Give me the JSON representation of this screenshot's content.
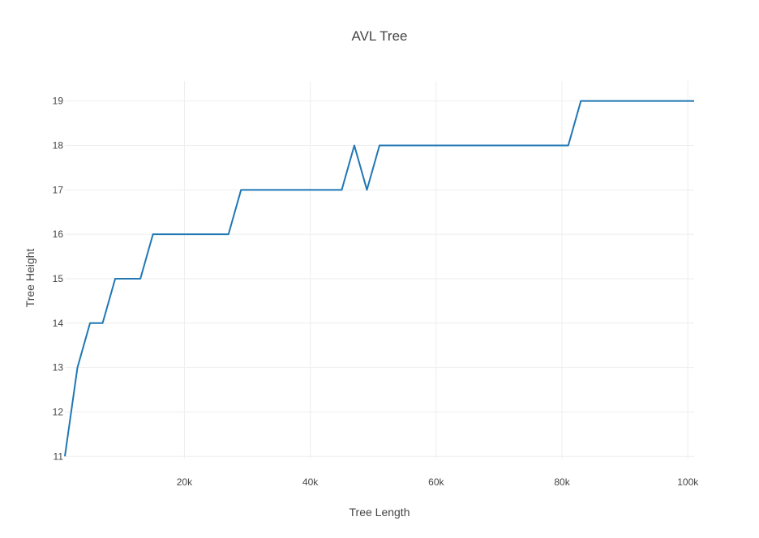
{
  "chart_data": {
    "type": "line",
    "title": "AVL Tree",
    "xlabel": "Tree Length",
    "ylabel": "Tree Height",
    "xlim": [
      1000,
      101000
    ],
    "ylim": [
      10.95,
      19.45
    ],
    "grid": true,
    "xticks": [
      20000,
      40000,
      60000,
      80000,
      100000
    ],
    "xtick_labels": [
      "20k",
      "40k",
      "60k",
      "80k",
      "100k"
    ],
    "yticks": [
      11,
      12,
      13,
      14,
      15,
      16,
      17,
      18,
      19
    ],
    "ytick_labels": [
      "11",
      "12",
      "13",
      "14",
      "15",
      "16",
      "17",
      "18",
      "19"
    ],
    "series": [
      {
        "color": "#1f77b4",
        "x": [
          1000,
          3000,
          5000,
          7000,
          9000,
          11000,
          13000,
          15000,
          17000,
          19000,
          21000,
          23000,
          25000,
          27000,
          29000,
          31000,
          33000,
          35000,
          37000,
          39000,
          41000,
          43000,
          45000,
          47000,
          49000,
          51000,
          53000,
          55000,
          57000,
          59000,
          61000,
          63000,
          65000,
          67000,
          69000,
          71000,
          73000,
          75000,
          77000,
          79000,
          81000,
          83000,
          85000,
          87000,
          89000,
          91000,
          93000,
          95000,
          97000,
          99000,
          101000
        ],
        "y": [
          11,
          13,
          14,
          14,
          15,
          15,
          15,
          16,
          16,
          16,
          16,
          16,
          16,
          16,
          17,
          17,
          17,
          17,
          17,
          17,
          17,
          17,
          17,
          18,
          17,
          18,
          18,
          18,
          18,
          18,
          18,
          18,
          18,
          18,
          18,
          18,
          18,
          18,
          18,
          18,
          18,
          19,
          19,
          19,
          19,
          19,
          19,
          19,
          19,
          19,
          19
        ]
      }
    ]
  }
}
